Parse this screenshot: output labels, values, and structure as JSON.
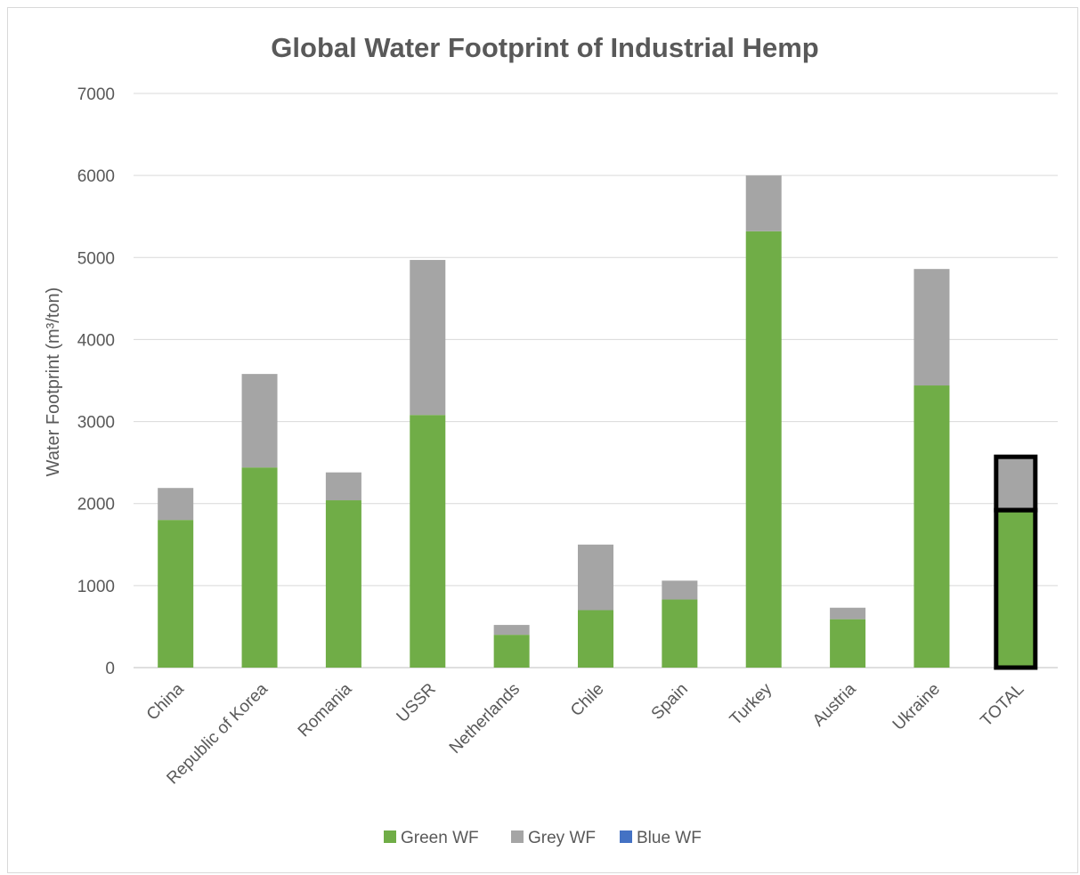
{
  "chart_data": {
    "type": "bar",
    "stacked": true,
    "title": "Global Water Footprint of Industrial Hemp",
    "ylabel": "Water Footprint (m³/ton)",
    "xlabel": "",
    "ylim": [
      0,
      7000
    ],
    "yticks": [
      0,
      1000,
      2000,
      3000,
      4000,
      5000,
      6000,
      7000
    ],
    "grid": true,
    "legend_position": "bottom",
    "categories": [
      "China",
      "Republic of Korea",
      "Romania",
      "USSR",
      "Netherlands",
      "Chile",
      "Spain",
      "Turkey",
      "Austria",
      "Ukraine",
      "TOTAL"
    ],
    "highlighted_category": "TOTAL",
    "series": [
      {
        "name": "Green WF",
        "color": "#70ad47",
        "values": [
          1800,
          2440,
          2040,
          3080,
          400,
          700,
          830,
          5320,
          590,
          3440,
          1920
        ]
      },
      {
        "name": "Grey WF",
        "color": "#a5a5a5",
        "values": [
          390,
          1140,
          340,
          1890,
          120,
          800,
          230,
          680,
          140,
          1420,
          650
        ]
      },
      {
        "name": "Blue WF",
        "color": "#4472c4",
        "values": [
          0,
          0,
          0,
          0,
          0,
          0,
          0,
          0,
          0,
          0,
          0
        ]
      }
    ]
  }
}
